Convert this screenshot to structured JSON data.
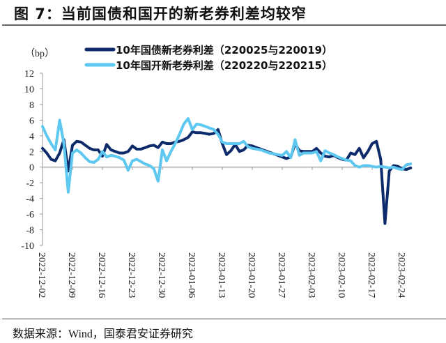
{
  "header": {
    "title": "图 7：当前国债和国开的新老券利差均较窄"
  },
  "footer": {
    "source": "数据来源：Wind，国泰君安证券研究"
  },
  "colors": {
    "series1": "#0d2a6b",
    "series2": "#5ec8f0",
    "axis": "#999999"
  },
  "chart_data": {
    "type": "line",
    "title": "图 7：当前国债和国开的新老券利差均较窄",
    "xlabel": "",
    "ylabel": "（bp）",
    "ylim": [
      -10,
      12
    ],
    "yticks": [
      12,
      10,
      8,
      6,
      4,
      2,
      0,
      -2,
      -4,
      -6,
      -8,
      -10
    ],
    "x_tick_labels": [
      "2022-12-02",
      "2022-12-09",
      "2022-12-16",
      "2022-12-23",
      "2022-12-30",
      "2023-01-06",
      "2023-01-13",
      "2023-01-20",
      "2023-01-27",
      "2023-02-03",
      "2023-02-10",
      "2023-02-17",
      "2023-02-24"
    ],
    "grid": false,
    "legend_position": "top",
    "x_days": [
      0,
      1,
      2,
      3,
      4,
      5,
      6,
      7,
      8,
      9,
      10,
      11,
      12,
      13,
      14,
      15,
      16,
      17,
      18,
      19,
      20,
      21,
      22,
      23,
      24,
      25,
      26,
      27,
      28,
      29,
      30,
      31,
      32,
      33,
      34,
      35,
      36,
      37,
      38,
      39,
      40,
      41,
      42,
      43,
      44,
      45,
      46,
      47,
      48,
      49,
      50,
      51,
      52,
      53,
      54,
      55,
      56,
      57,
      58,
      59,
      60,
      61,
      62,
      63,
      64,
      65,
      66,
      67,
      68,
      69,
      70,
      71,
      72,
      73,
      74,
      75,
      76,
      77,
      78,
      79,
      80,
      81,
      82,
      83,
      84,
      85,
      86
    ],
    "series": [
      {
        "name": "10年国债新老券利差（220025与220019）",
        "values": [
          2.4,
          1.8,
          1.0,
          0.8,
          1.8,
          3.5,
          -0.5,
          2.8,
          3.3,
          3.2,
          2.8,
          2.4,
          2.2,
          2.2,
          1.4,
          2.9,
          2.2,
          2.0,
          1.8,
          1.8,
          2.0,
          2.7,
          2.3,
          2.3,
          2.5,
          2.7,
          2.8,
          2.5,
          3.2,
          3.0,
          3.0,
          3.2,
          3.3,
          3.5,
          3.8,
          4.5,
          4.4,
          4.4,
          4.3,
          4.2,
          4.3,
          4.8,
          3.0,
          1.6,
          2.1,
          2.9,
          2.0,
          2.2,
          2.8,
          2.7,
          2.5,
          2.3,
          2.1,
          1.9,
          1.7,
          1.5,
          1.3,
          1.1,
          1.3,
          3.0,
          2.1,
          2.0,
          2.0,
          2.0,
          2.4,
          1.8,
          1.4,
          1.3,
          1.5,
          1.2,
          1.0,
          0.9,
          1.8,
          1.6,
          2.4,
          1.2,
          2.0,
          3.0,
          3.3,
          1.0,
          -7.2,
          -0.5,
          0.2,
          0.1,
          -0.2,
          -0.3,
          -0.1
        ]
      },
      {
        "name": "10年国开新老券利差（220220与220215）",
        "values": [
          5.2,
          4.0,
          3.0,
          2.2,
          6.0,
          3.0,
          -3.2,
          1.8,
          2.2,
          1.8,
          1.2,
          0.7,
          0.6,
          1.0,
          2.0,
          1.3,
          1.5,
          1.4,
          1.2,
          0.9,
          -0.4,
          0.8,
          1.0,
          0.7,
          0.4,
          0.2,
          -0.2,
          -1.8,
          2.2,
          0.8,
          2.0,
          3.0,
          4.2,
          5.5,
          6.2,
          4.8,
          5.5,
          5.4,
          5.2,
          5.0,
          4.8,
          4.2,
          3.2,
          3.0,
          3.0,
          3.0,
          3.0,
          3.3,
          2.6,
          2.4,
          2.3,
          2.2,
          2.0,
          1.8,
          1.7,
          1.6,
          1.5,
          2.0,
          1.2,
          3.5,
          1.5,
          1.8,
          1.8,
          1.8,
          2.0,
          0.8,
          2.1,
          1.8,
          1.6,
          1.3,
          1.1,
          0.9,
          0.8,
          0.2,
          0.0,
          0.2,
          0.2,
          0.1,
          0.0,
          0.1,
          0.0,
          -0.1,
          0.0,
          -0.2,
          -0.3,
          0.3,
          0.4
        ]
      }
    ]
  },
  "legend": {
    "items": [
      {
        "label": "10年国债新老券利差（220025与220019）",
        "color": "#0d2a6b"
      },
      {
        "label": "10年国开新老券利差（220220与220215）",
        "color": "#5ec8f0"
      }
    ]
  },
  "axis": {
    "unit": "（bp）"
  }
}
